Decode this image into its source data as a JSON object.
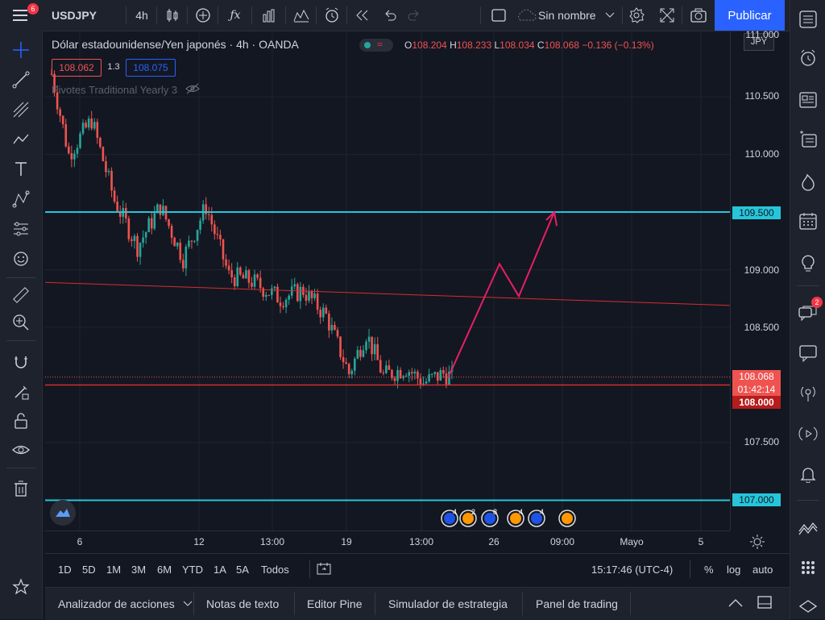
{
  "colors": {
    "up": "#26a69a",
    "down": "#ef5350",
    "accent": "#2962ff",
    "cyan_line": "#26c6da",
    "red_line": "#d32f2f",
    "pink": "#e91e63"
  },
  "topbar": {
    "notif_count": "6",
    "symbol": "USDJPY",
    "interval": "4h",
    "layout_name": "Sin nombre",
    "publish_label": "Publicar"
  },
  "legend": {
    "title": "Dólar estadounidense/Yen japonés · 4h · OANDA",
    "o_label": "O",
    "o": "108.204",
    "h_label": "H",
    "h": "108.233",
    "l_label": "L",
    "l": "108.034",
    "c_label": "C",
    "c": "108.068",
    "change": "−0.136 (−0.13%)",
    "bid": "108.062",
    "spread": "1.3",
    "ask": "108.075",
    "indicator": "Pivotes Traditional Yearly 3"
  },
  "price_axis": {
    "currency": "JPY",
    "top_partial": "111.000",
    "ticks": [
      "110.500",
      "110.000",
      "109.000",
      "108.500",
      "107.500"
    ],
    "label_109500": "109.500",
    "label_current": "108.068",
    "countdown": "01:42:14",
    "label_108000": "108.000",
    "label_107000": "107.000"
  },
  "time_axis": {
    "ticks": [
      "6",
      "12",
      "13:00",
      "19",
      "13:00",
      "26",
      "09:00",
      "Mayo",
      "5"
    ]
  },
  "range_bar": {
    "ranges": [
      "1D",
      "5D",
      "1M",
      "3M",
      "6M",
      "YTD",
      "1A",
      "5A",
      "Todos"
    ],
    "clock": "15:17:46 (UTC-4)",
    "pct": "%",
    "log": "log",
    "auto": "auto"
  },
  "bottom_tabs": [
    "Analizador de acciones",
    "Notas de texto",
    "Editor Pine",
    "Simulador de estrategia",
    "Panel de trading"
  ],
  "right_badge": "2",
  "event_markers": [
    "4",
    "2",
    "8",
    "4",
    "4"
  ]
}
